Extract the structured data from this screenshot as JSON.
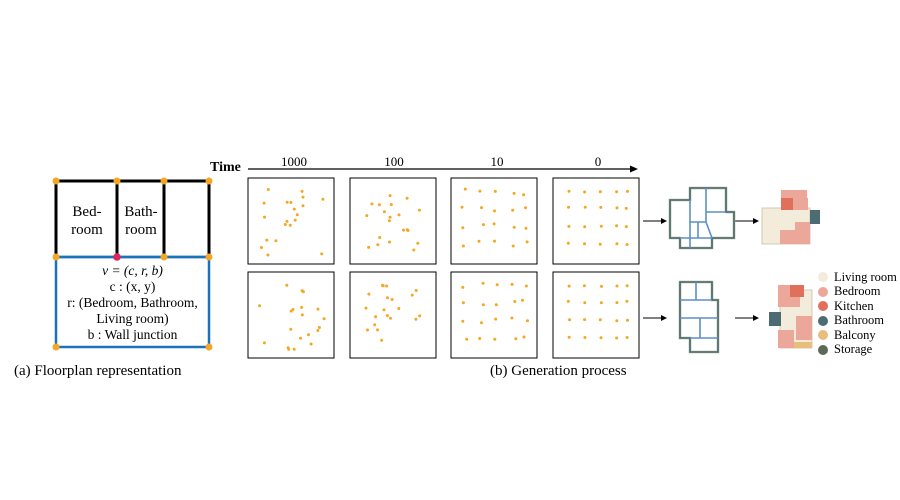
{
  "part_a": {
    "rooms": [
      "Bed-\nroom",
      "Bath-\nroom"
    ],
    "room_lines": [
      [
        "Bed-",
        "room"
      ],
      [
        "Bath-",
        "room"
      ]
    ],
    "rep": {
      "v_line": "v = (c, r, b)",
      "c_line": "c : (x, y)",
      "r_line_1": "r: (Bedroom, Bathroom,",
      "r_line_2": "Living room)",
      "b_line": "b : Wall junction"
    },
    "caption": "(a) Floorplan representation"
  },
  "part_b": {
    "time_label": "Time",
    "timesteps": [
      "1000",
      "100",
      "10",
      "0"
    ],
    "caption": "(b) Generation process"
  },
  "legend": [
    {
      "label": "Living room",
      "color": "#f3ecdb"
    },
    {
      "label": "Bedroom",
      "color": "#eba89a"
    },
    {
      "label": "Kitchen",
      "color": "#e0705a"
    },
    {
      "label": "Bathroom",
      "color": "#4d6b72"
    },
    {
      "label": "Balcony",
      "color": "#e9bd7c"
    },
    {
      "label": "Storage",
      "color": "#5b6b58"
    }
  ],
  "colors": {
    "junction": "#f5a623",
    "accent_blue": "#1a73b8",
    "highlight_red": "#e0245e"
  }
}
